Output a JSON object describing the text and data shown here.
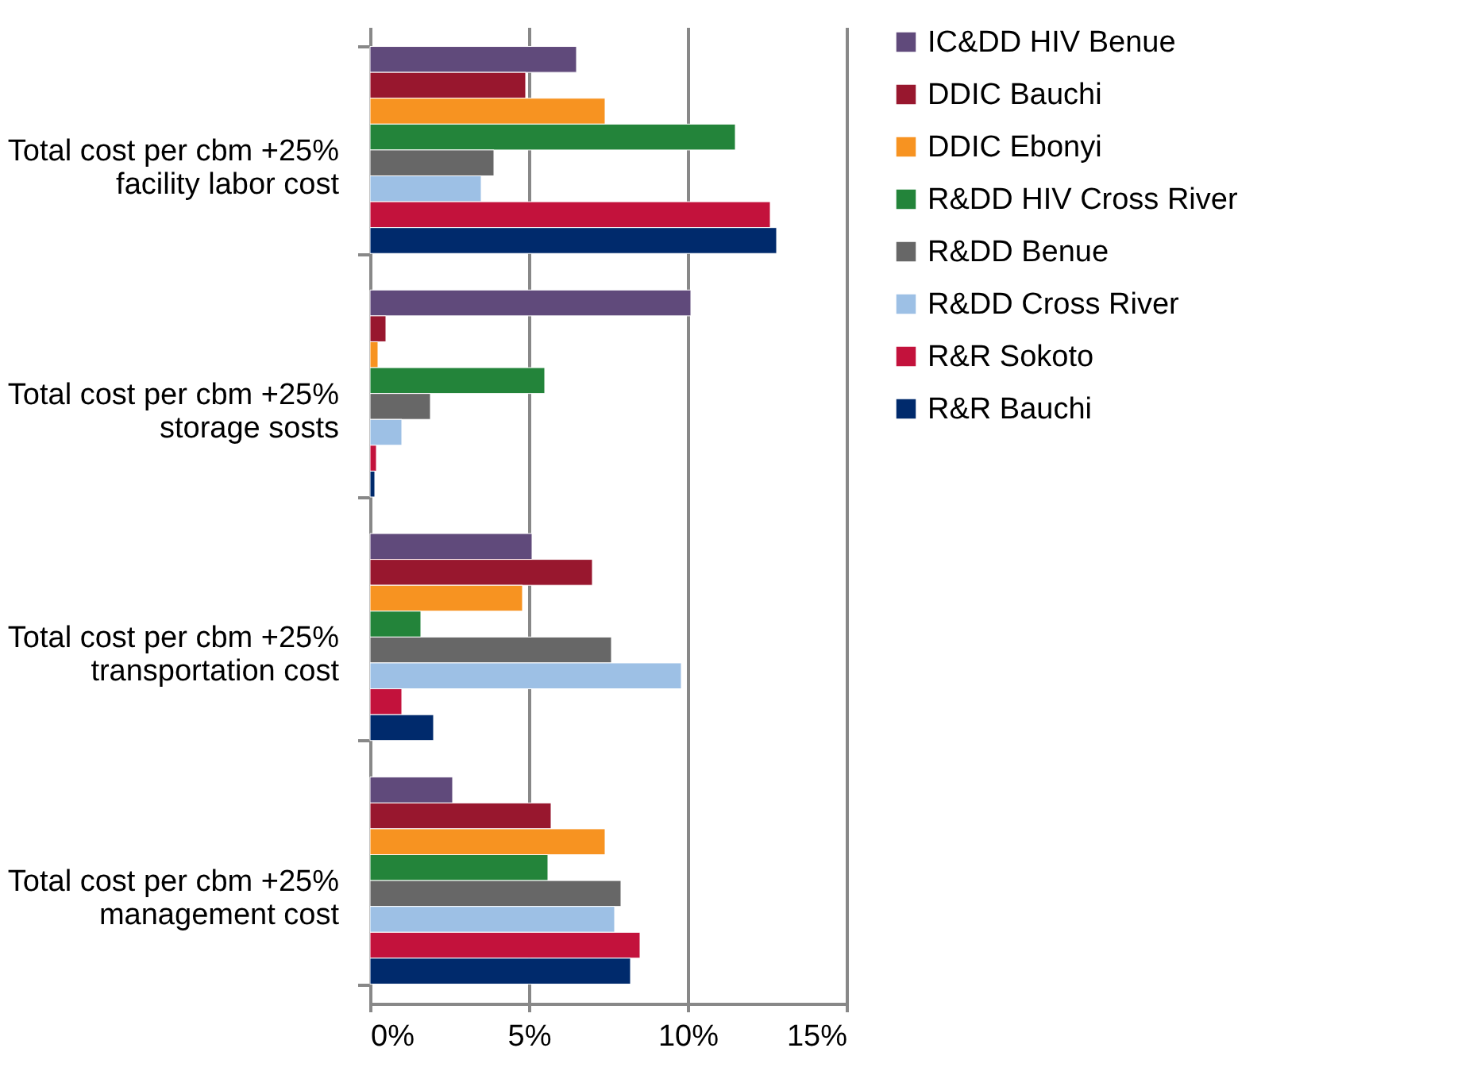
{
  "chart_data": {
    "type": "bar",
    "orientation": "horizontal",
    "categories": [
      "Total cost per cbm +25%\nfacility labor cost",
      "Total cost per cbm +25%\nstorage sosts",
      "Total cost per cbm +25%\ntransportation cost",
      "Total cost per cbm +25%\nmanagement cost"
    ],
    "series": [
      {
        "name": "IC&DD HIV Benue",
        "color": "#604a7b",
        "values": [
          6.5,
          10.1,
          5.1,
          2.6
        ]
      },
      {
        "name": "DDIC Bauchi",
        "color": "#98172e",
        "values": [
          4.9,
          0.5,
          7.0,
          5.7
        ]
      },
      {
        "name": "DDIC Ebonyi",
        "color": "#f79321",
        "values": [
          7.4,
          0.25,
          4.8,
          7.4
        ]
      },
      {
        "name": "R&DD HIV Cross River",
        "color": "#23843a",
        "values": [
          11.5,
          5.5,
          1.6,
          5.6
        ]
      },
      {
        "name": "R&DD Benue",
        "color": "#676767",
        "values": [
          3.9,
          1.9,
          7.6,
          7.9
        ]
      },
      {
        "name": "R&DD Cross River",
        "color": "#9dc0e5",
        "values": [
          3.5,
          1.0,
          9.8,
          7.7
        ]
      },
      {
        "name": "R&R Sokoto",
        "color": "#c3123c",
        "values": [
          12.6,
          0.2,
          1.0,
          8.5
        ]
      },
      {
        "name": "R&R Bauchi",
        "color": "#002a6c",
        "values": [
          12.8,
          0.15,
          2.0,
          8.2
        ]
      }
    ],
    "xlim": [
      0,
      15
    ],
    "xticks": [
      {
        "value": 0,
        "label": "0%"
      },
      {
        "value": 5,
        "label": "5%"
      },
      {
        "value": 10,
        "label": "10%"
      },
      {
        "value": 15,
        "label": "15%"
      }
    ],
    "grid": "x",
    "legend": "right"
  }
}
